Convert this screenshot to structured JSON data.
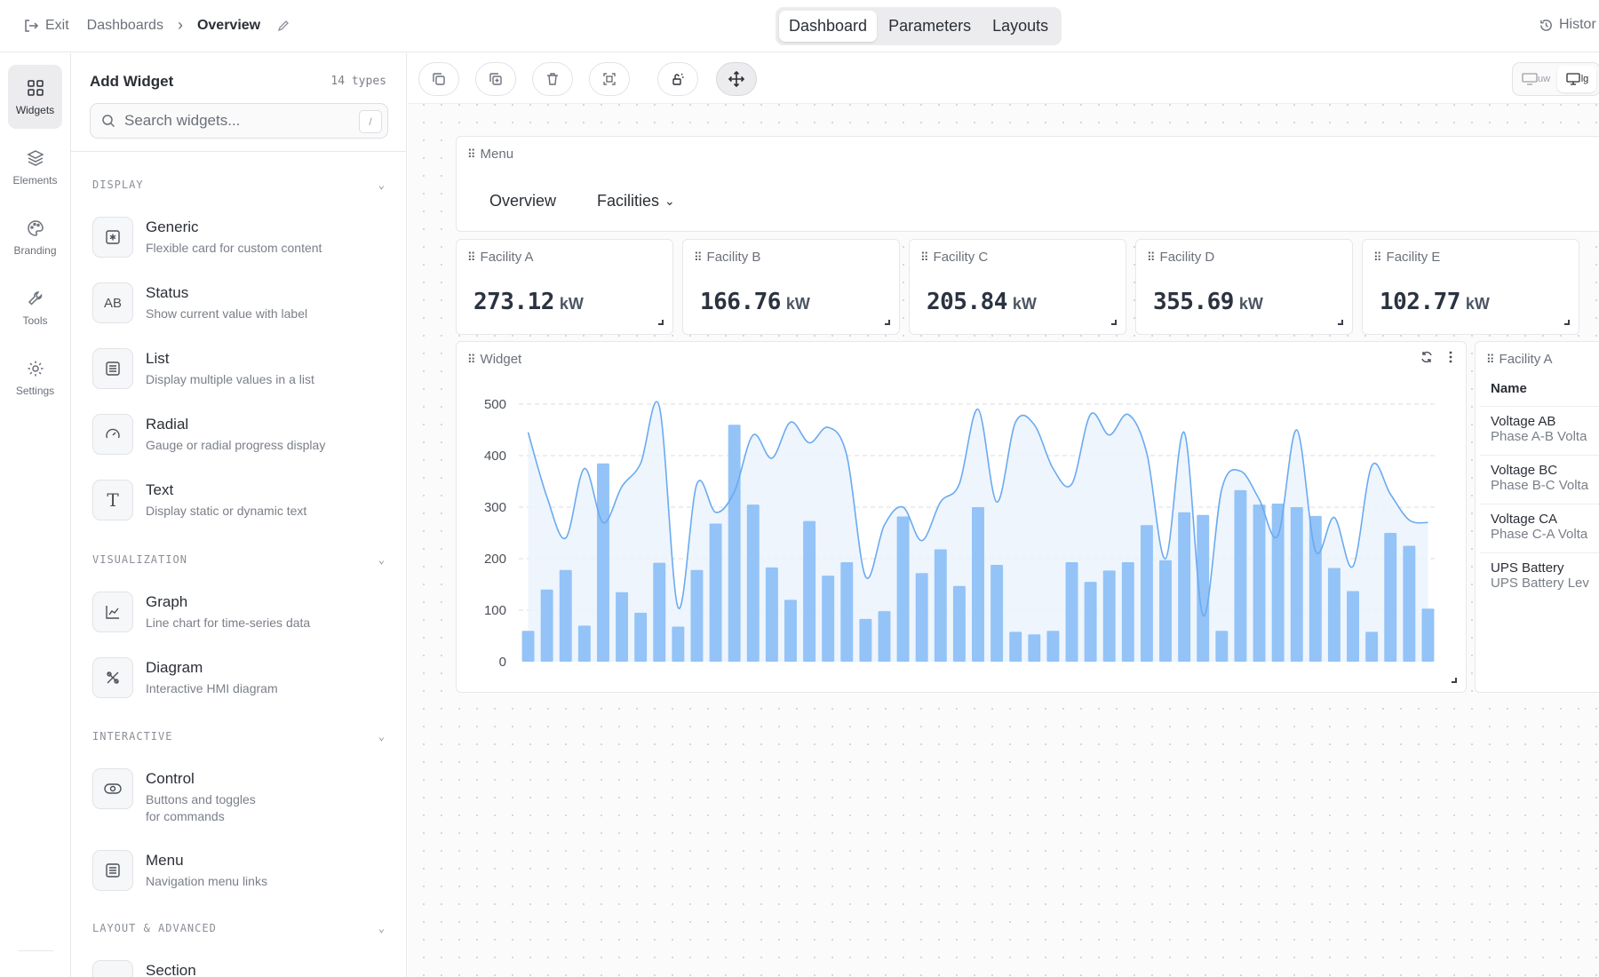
{
  "topbar": {
    "exit_label": "Exit",
    "breadcrumb_parent": "Dashboards",
    "breadcrumb_current": "Overview",
    "tabs": [
      "Dashboard",
      "Parameters",
      "Layouts"
    ],
    "active_tab": "Dashboard",
    "history_label": "Histor"
  },
  "rail": {
    "items": [
      {
        "label": "Widgets",
        "icon": "grid-icon",
        "active": true
      },
      {
        "label": "Elements",
        "icon": "layers-icon",
        "active": false
      },
      {
        "label": "Branding",
        "icon": "palette-icon",
        "active": false
      },
      {
        "label": "Tools",
        "icon": "wrench-icon",
        "active": false
      },
      {
        "label": "Settings",
        "icon": "gear-icon",
        "active": false
      }
    ]
  },
  "panel": {
    "title": "Add Widget",
    "count": "14 types",
    "search_placeholder": "Search widgets...",
    "search_shortcut": "/",
    "sections": [
      {
        "label": "DISPLAY"
      },
      {
        "label": "VISUALIZATION"
      },
      {
        "label": "INTERACTIVE"
      },
      {
        "label": "LAYOUT & ADVANCED"
      }
    ],
    "widgets": [
      {
        "name": "Generic",
        "desc": "Flexible card for custom content",
        "icon": "asterisk-box-icon"
      },
      {
        "name": "Status",
        "desc": "Show current value with label",
        "icon": "ab-text-icon",
        "glyph": "AB"
      },
      {
        "name": "List",
        "desc": "Display multiple values in a list",
        "icon": "list-icon"
      },
      {
        "name": "Radial",
        "desc": "Gauge or radial progress display",
        "icon": "gauge-icon"
      },
      {
        "name": "Text",
        "desc": "Display static or dynamic text",
        "icon": "text-icon",
        "glyph": "T"
      },
      {
        "name": "Graph",
        "desc": "Line chart for time-series data",
        "icon": "line-chart-icon"
      },
      {
        "name": "Diagram",
        "desc": "Interactive HMI diagram",
        "icon": "diagram-icon"
      },
      {
        "name": "Control",
        "desc": "Buttons and toggles",
        "desc2": "for commands",
        "icon": "toggle-icon"
      },
      {
        "name": "Menu",
        "desc": "Navigation menu links",
        "icon": "menu-icon"
      },
      {
        "name": "Section",
        "desc": "",
        "icon": "section-icon"
      }
    ]
  },
  "canvas": {
    "menu_card": {
      "title": "Menu",
      "links": [
        "Overview",
        "Facilities"
      ]
    },
    "kpis": [
      {
        "title": "Facility A",
        "value": "273.12",
        "unit": "kW"
      },
      {
        "title": "Facility B",
        "value": "166.76",
        "unit": "kW"
      },
      {
        "title": "Facility C",
        "value": "205.84",
        "unit": "kW"
      },
      {
        "title": "Facility D",
        "value": "355.69",
        "unit": "kW"
      },
      {
        "title": "Facility E",
        "value": "102.77",
        "unit": "kW"
      }
    ],
    "chart_card": {
      "title": "Widget"
    },
    "table_card": {
      "title": "Facility A",
      "column": "Name",
      "rows": [
        {
          "name": "Voltage AB",
          "desc": "Phase A-B Volta"
        },
        {
          "name": "Voltage BC",
          "desc": "Phase B-C Volta"
        },
        {
          "name": "Voltage CA",
          "desc": "Phase C-A Volta"
        },
        {
          "name": "UPS Battery",
          "desc": "UPS Battery Lev"
        }
      ]
    },
    "view_toggle": {
      "options": [
        "uw",
        "lg"
      ],
      "active": "lg"
    }
  },
  "colors": {
    "bar": "#93c3f7",
    "line": "#6aaaf0",
    "area": "#eaf3fd",
    "grid": "#d9dde2"
  },
  "chart_data": {
    "type": "bar",
    "title": "",
    "ylim": [
      0,
      500
    ],
    "yticks": [
      0,
      100,
      200,
      300,
      400,
      500
    ],
    "grid": true,
    "series": [
      {
        "type": "bar",
        "values": [
          60,
          140,
          178,
          70,
          385,
          135,
          95,
          192,
          68,
          178,
          268,
          460,
          305,
          183,
          120,
          273,
          167,
          193,
          83,
          98,
          282,
          172,
          218,
          147,
          300,
          188,
          58,
          53,
          60,
          193,
          155,
          177,
          193,
          265,
          197,
          290,
          285,
          60,
          333,
          305,
          307,
          300,
          283,
          182,
          137,
          58,
          250,
          225,
          103
        ]
      },
      {
        "type": "line",
        "values": [
          445,
          320,
          240,
          375,
          270,
          340,
          385,
          495,
          105,
          345,
          290,
          330,
          440,
          395,
          465,
          425,
          455,
          400,
          165,
          265,
          300,
          235,
          310,
          345,
          490,
          310,
          465,
          460,
          375,
          345,
          480,
          440,
          480,
          405,
          200,
          445,
          90,
          335,
          370,
          315,
          245,
          450,
          215,
          280,
          185,
          380,
          325,
          275,
          270
        ]
      }
    ]
  }
}
